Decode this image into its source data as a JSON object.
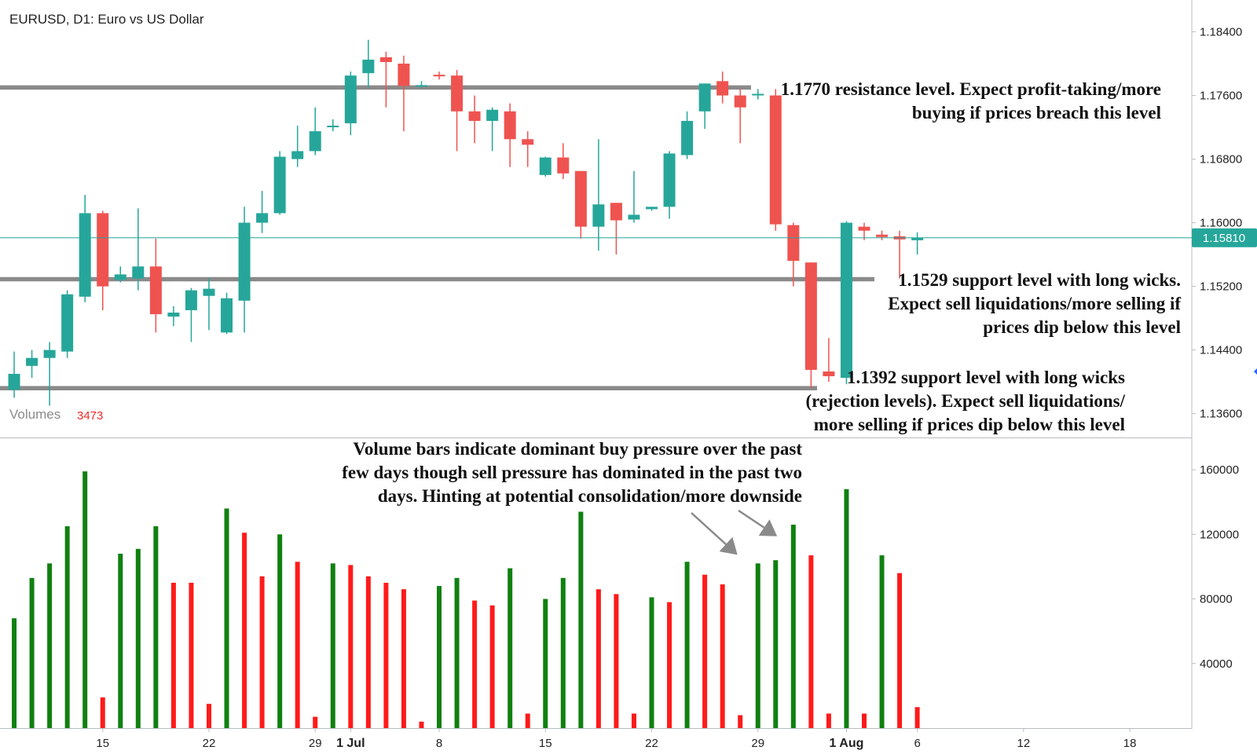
{
  "header": {
    "title": "EURUSD, D1: Euro vs US Dollar",
    "volumes_label": "Volumes",
    "volumes_value": "3473"
  },
  "colors": {
    "bull_candle": "#26a69a",
    "bear_candle": "#ef5350",
    "bull_volume": "#108010",
    "bear_volume": "#ff1a1a",
    "level_line": "#8a8a8a",
    "last_price": "#26a69a"
  },
  "price_axis": {
    "ticks": [
      "1.18400",
      "1.17600",
      "1.16800",
      "1.16000",
      "1.15200",
      "1.14400",
      "1.13600"
    ],
    "last_price_label": "1.15810"
  },
  "volume_axis": {
    "ticks": [
      "160000",
      "120000",
      "80000",
      "40000"
    ]
  },
  "date_axis": {
    "labels": [
      "15",
      "22",
      "29",
      "1 Jul",
      "8",
      "15",
      "22",
      "29",
      "1 Aug",
      "6",
      "12",
      "18"
    ],
    "bold": [
      false,
      false,
      false,
      true,
      false,
      false,
      false,
      false,
      true,
      false,
      false,
      false
    ]
  },
  "annotations": {
    "resistance": [
      "1.1770 resistance level. Expect profit-taking/more",
      "buying if prices breach this level"
    ],
    "support_1529": [
      "1.1529 support level with long wicks.",
      "Expect sell liquidations/more selling if",
      "prices dip below this level"
    ],
    "support_1392": [
      "1.1392 support level with long wicks",
      "(rejection levels). Expect sell liquidations/",
      "more selling if prices dip below this level"
    ],
    "volume_note": [
      "Volume bars indicate dominant buy pressure over the past",
      "few days though sell pressure has dominated in the past two",
      "days. Hinting at potential consolidation/more downside"
    ]
  },
  "chart_data": [
    {
      "type": "candlestick",
      "title": "EURUSD, D1: Euro vs US Dollar",
      "ylim": [
        1.133,
        1.188
      ],
      "x_range": [
        -0.8,
        66.5
      ],
      "last_price": 1.1581,
      "levels": [
        {
          "price": 1.177,
          "label": "1.1770 resistance level"
        },
        {
          "price": 1.1529,
          "label": "1.1529 support level"
        },
        {
          "price": 1.1392,
          "label": "1.1392 support level"
        }
      ],
      "candles": [
        {
          "o": 1.139,
          "h": 1.1438,
          "l": 1.138,
          "c": 1.141
        },
        {
          "o": 1.142,
          "h": 1.144,
          "l": 1.1405,
          "c": 1.143
        },
        {
          "o": 1.143,
          "h": 1.145,
          "l": 1.137,
          "c": 1.144
        },
        {
          "o": 1.1438,
          "h": 1.1515,
          "l": 1.143,
          "c": 1.151
        },
        {
          "o": 1.1507,
          "h": 1.1635,
          "l": 1.15,
          "c": 1.1612
        },
        {
          "o": 1.1612,
          "h": 1.1615,
          "l": 1.149,
          "c": 1.152
        },
        {
          "o": 1.1528,
          "h": 1.1545,
          "l": 1.1525,
          "c": 1.1535
        },
        {
          "o": 1.153,
          "h": 1.1618,
          "l": 1.1515,
          "c": 1.1545
        },
        {
          "o": 1.1545,
          "h": 1.158,
          "l": 1.1462,
          "c": 1.1485
        },
        {
          "o": 1.1482,
          "h": 1.1495,
          "l": 1.147,
          "c": 1.1487
        },
        {
          "o": 1.149,
          "h": 1.1518,
          "l": 1.145,
          "c": 1.1515
        },
        {
          "o": 1.1508,
          "h": 1.153,
          "l": 1.1465,
          "c": 1.1517
        },
        {
          "o": 1.1462,
          "h": 1.1512,
          "l": 1.146,
          "c": 1.1505
        },
        {
          "o": 1.1502,
          "h": 1.162,
          "l": 1.1462,
          "c": 1.16
        },
        {
          "o": 1.16,
          "h": 1.164,
          "l": 1.1587,
          "c": 1.1612
        },
        {
          "o": 1.1612,
          "h": 1.169,
          "l": 1.161,
          "c": 1.1683
        },
        {
          "o": 1.168,
          "h": 1.1722,
          "l": 1.167,
          "c": 1.169
        },
        {
          "o": 1.169,
          "h": 1.1745,
          "l": 1.1685,
          "c": 1.1715
        },
        {
          "o": 1.172,
          "h": 1.173,
          "l": 1.1715,
          "c": 1.1722
        },
        {
          "o": 1.1725,
          "h": 1.179,
          "l": 1.171,
          "c": 1.1785
        },
        {
          "o": 1.1788,
          "h": 1.183,
          "l": 1.177,
          "c": 1.1805
        },
        {
          "o": 1.1808,
          "h": 1.1815,
          "l": 1.1745,
          "c": 1.1802
        },
        {
          "o": 1.18,
          "h": 1.181,
          "l": 1.1715,
          "c": 1.1772
        },
        {
          "o": 1.1772,
          "h": 1.1778,
          "l": 1.177,
          "c": 1.1773
        },
        {
          "o": 1.1786,
          "h": 1.179,
          "l": 1.178,
          "c": 1.1784
        },
        {
          "o": 1.1785,
          "h": 1.1792,
          "l": 1.169,
          "c": 1.174
        },
        {
          "o": 1.174,
          "h": 1.176,
          "l": 1.17,
          "c": 1.1728
        },
        {
          "o": 1.1728,
          "h": 1.1745,
          "l": 1.169,
          "c": 1.1742
        },
        {
          "o": 1.174,
          "h": 1.175,
          "l": 1.167,
          "c": 1.1705
        },
        {
          "o": 1.1705,
          "h": 1.1715,
          "l": 1.167,
          "c": 1.1698
        },
        {
          "o": 1.166,
          "h": 1.1683,
          "l": 1.1658,
          "c": 1.1682
        },
        {
          "o": 1.1682,
          "h": 1.17,
          "l": 1.1655,
          "c": 1.1662
        },
        {
          "o": 1.1665,
          "h": 1.1665,
          "l": 1.158,
          "c": 1.1595
        },
        {
          "o": 1.1595,
          "h": 1.1705,
          "l": 1.1565,
          "c": 1.1623
        },
        {
          "o": 1.1625,
          "h": 1.1623,
          "l": 1.156,
          "c": 1.1603
        },
        {
          "o": 1.1604,
          "h": 1.1665,
          "l": 1.16,
          "c": 1.161
        },
        {
          "o": 1.1617,
          "h": 1.162,
          "l": 1.1615,
          "c": 1.162
        },
        {
          "o": 1.162,
          "h": 1.169,
          "l": 1.1605,
          "c": 1.1687
        },
        {
          "o": 1.1685,
          "h": 1.174,
          "l": 1.168,
          "c": 1.1728
        },
        {
          "o": 1.174,
          "h": 1.1775,
          "l": 1.1718,
          "c": 1.1775
        },
        {
          "o": 1.1778,
          "h": 1.179,
          "l": 1.175,
          "c": 1.176
        },
        {
          "o": 1.176,
          "h": 1.1768,
          "l": 1.17,
          "c": 1.1745
        },
        {
          "o": 1.1762,
          "h": 1.1768,
          "l": 1.1755,
          "c": 1.1762
        },
        {
          "o": 1.176,
          "h": 1.1768,
          "l": 1.159,
          "c": 1.1598
        },
        {
          "o": 1.1597,
          "h": 1.16,
          "l": 1.152,
          "c": 1.1552
        },
        {
          "o": 1.155,
          "h": 1.155,
          "l": 1.1392,
          "c": 1.1415
        },
        {
          "o": 1.1413,
          "h": 1.1455,
          "l": 1.14,
          "c": 1.1407
        },
        {
          "o": 1.1405,
          "h": 1.1602,
          "l": 1.1397,
          "c": 1.16
        },
        {
          "o": 1.1595,
          "h": 1.16,
          "l": 1.1578,
          "c": 1.159
        },
        {
          "o": 1.1585,
          "h": 1.159,
          "l": 1.1578,
          "c": 1.1582
        },
        {
          "o": 1.1583,
          "h": 1.159,
          "l": 1.153,
          "c": 1.1579
        },
        {
          "o": 1.1578,
          "h": 1.1588,
          "l": 1.156,
          "c": 1.1581
        }
      ]
    },
    {
      "type": "bar",
      "title": "Volumes",
      "ylim": [
        0,
        180000
      ],
      "values": [
        68000,
        93000,
        102000,
        125000,
        159000,
        19000,
        108000,
        111000,
        125000,
        90000,
        90000,
        15000,
        136000,
        121000,
        94000,
        120000,
        103000,
        7000,
        102000,
        101000,
        94000,
        90000,
        86000,
        4000,
        88000,
        93000,
        79000,
        76000,
        99000,
        9000,
        80000,
        93000,
        134000,
        86000,
        83000,
        9000,
        81000,
        78000,
        103000,
        95000,
        89000,
        8000,
        102000,
        104000,
        126000,
        107000,
        9000,
        148000,
        9000,
        107000,
        96000,
        13000
      ],
      "directions": [
        "up",
        "up",
        "up",
        "up",
        "up",
        "down",
        "up",
        "up",
        "up",
        "down",
        "down",
        "down",
        "up",
        "down",
        "down",
        "up",
        "down",
        "down",
        "up",
        "down",
        "down",
        "down",
        "down",
        "down",
        "up",
        "up",
        "down",
        "down",
        "up",
        "down",
        "up",
        "up",
        "up",
        "down",
        "down",
        "down",
        "up",
        "down",
        "up",
        "down",
        "down",
        "down",
        "up",
        "up",
        "up",
        "down",
        "down",
        "up",
        "down",
        "up",
        "down",
        "down"
      ]
    }
  ]
}
